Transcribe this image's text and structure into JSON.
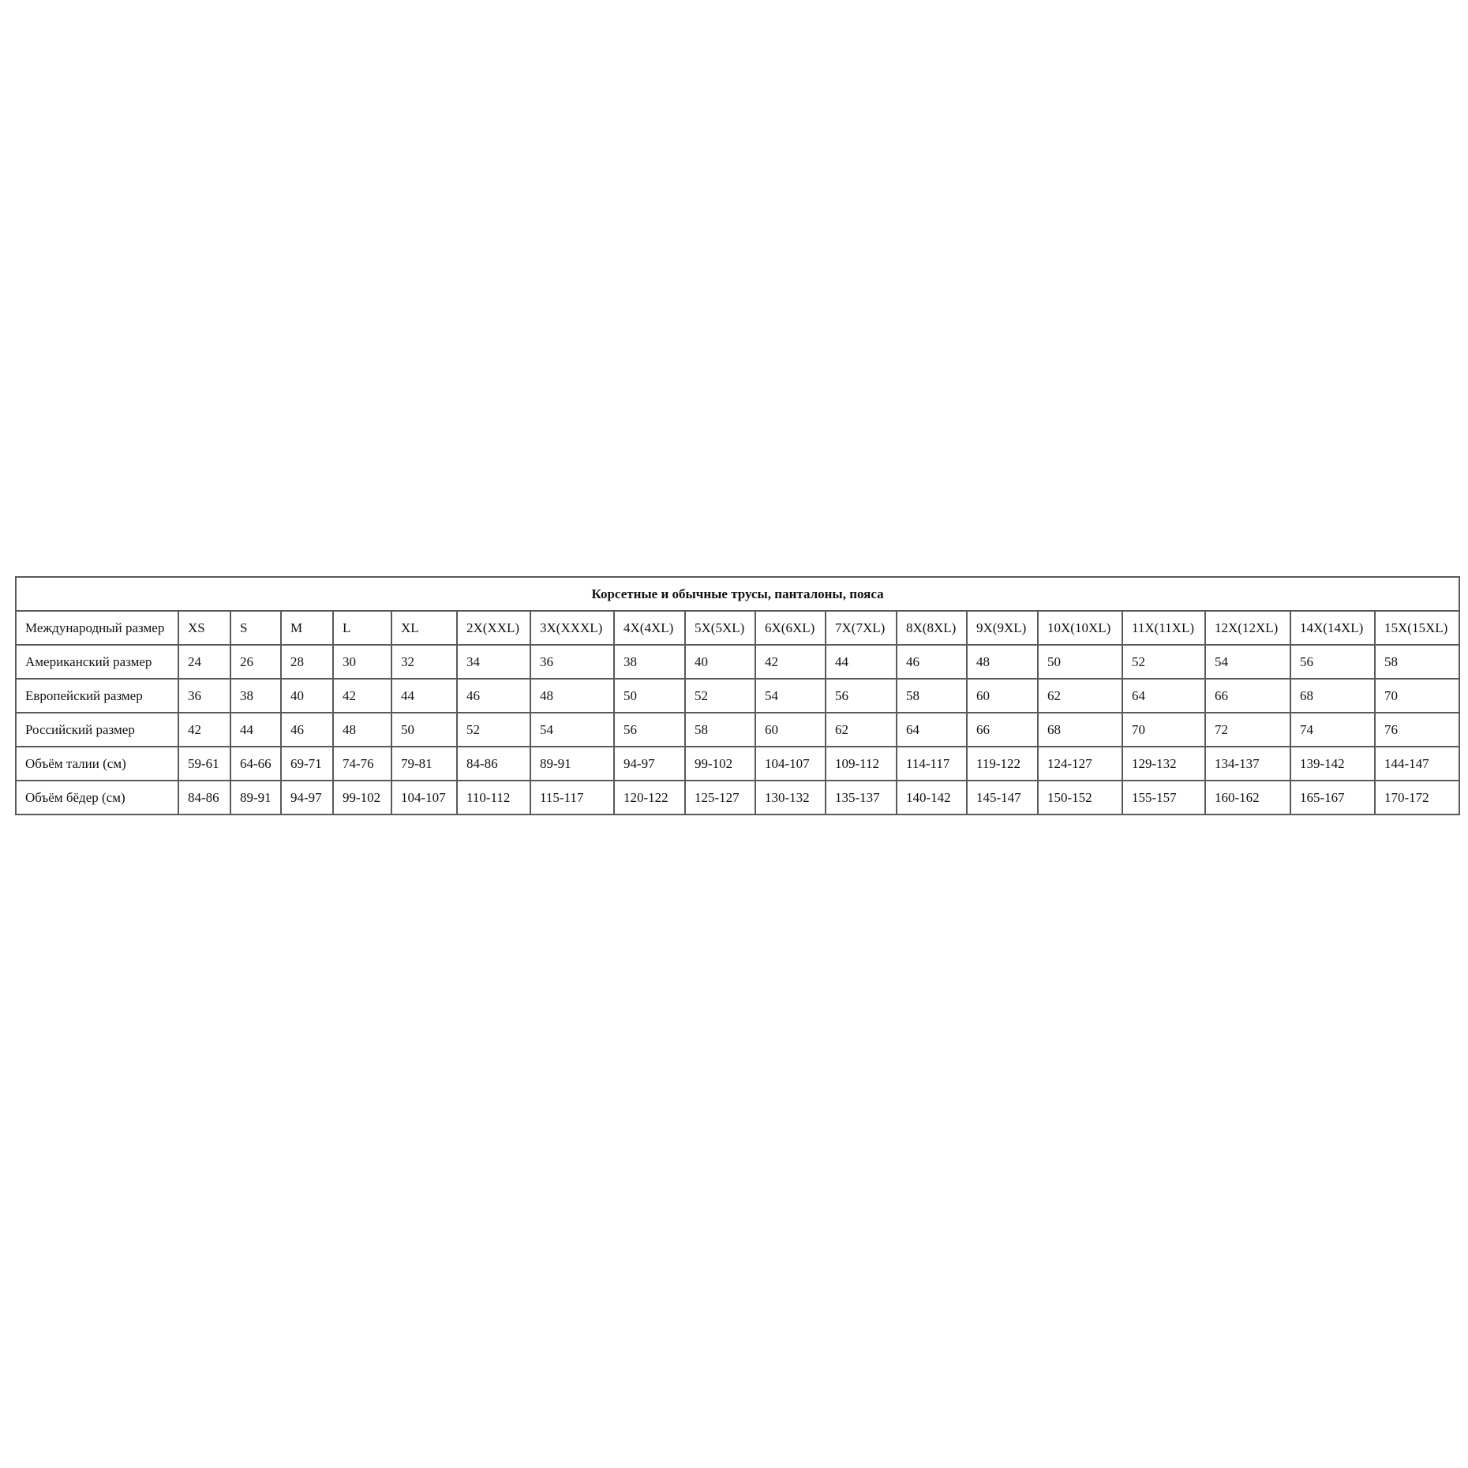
{
  "table": {
    "title": "Корсетные и обычные трусы, панталоны, пояса",
    "rows": [
      {
        "label": "Международный размер",
        "cells": [
          "XS",
          "S",
          "M",
          "L",
          "XL",
          "2X(XXL)",
          "3X(XXXL)",
          "4X(4XL)",
          "5X(5XL)",
          "6X(6XL)",
          "7X(7XL)",
          "8X(8XL)",
          "9X(9XL)",
          "10X(10XL)",
          "11X(11XL)",
          "12X(12XL)",
          "14X(14XL)",
          "15X(15XL)"
        ]
      },
      {
        "label": "Американский размер",
        "cells": [
          "24",
          "26",
          "28",
          "30",
          "32",
          "34",
          "36",
          "38",
          "40",
          "42",
          "44",
          "46",
          "48",
          "50",
          "52",
          "54",
          "56",
          "58"
        ]
      },
      {
        "label": "Европейский размер",
        "cells": [
          "36",
          "38",
          "40",
          "42",
          "44",
          "46",
          "48",
          "50",
          "52",
          "54",
          "56",
          "58",
          "60",
          "62",
          "64",
          "66",
          "68",
          "70"
        ]
      },
      {
        "label": "Российский размер",
        "cells": [
          "42",
          "44",
          "46",
          "48",
          "50",
          "52",
          "54",
          "56",
          "58",
          "60",
          "62",
          "64",
          "66",
          "68",
          "70",
          "72",
          "74",
          "76"
        ]
      },
      {
        "label": "Объём талии (см)",
        "cells": [
          "59-61",
          "64-66",
          "69-71",
          "74-76",
          "79-81",
          "84-86",
          "89-91",
          "94-97",
          "99-102",
          "104-107",
          "109-112",
          "114-117",
          "119-122",
          "124-127",
          "129-132",
          "134-137",
          "139-142",
          "144-147"
        ]
      },
      {
        "label": "Объём бёдер (см)",
        "cells": [
          "84-86",
          "89-91",
          "94-97",
          "99-102",
          "104-107",
          "110-112",
          "115-117",
          "120-122",
          "125-127",
          "130-132",
          "135-137",
          "140-142",
          "145-147",
          "150-152",
          "155-157",
          "160-162",
          "165-167",
          "170-172"
        ]
      }
    ]
  }
}
